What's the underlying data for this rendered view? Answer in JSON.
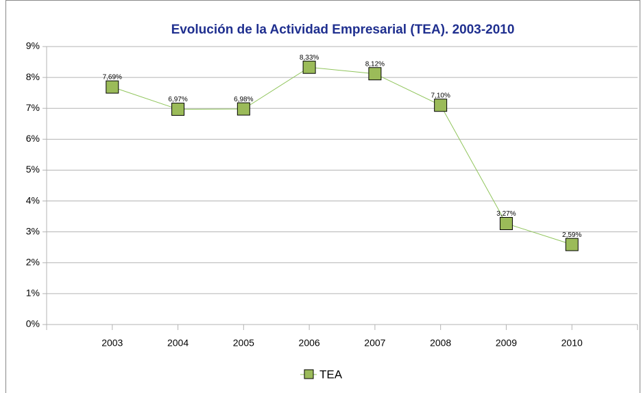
{
  "chart_data": {
    "type": "line",
    "title": "Evolución de la Actividad Empresarial (TEA). 2003-2010",
    "categories": [
      "2003",
      "2004",
      "2005",
      "2006",
      "2007",
      "2008",
      "2009",
      "2010"
    ],
    "series": [
      {
        "name": "TEA",
        "color": "#9bbb59",
        "line_color": "#8fc45a",
        "values": [
          7.69,
          6.97,
          6.98,
          8.33,
          8.12,
          7.1,
          3.27,
          2.59
        ],
        "value_labels": [
          "7,69%",
          "6,97%",
          "6,98%",
          "8,33%",
          "8,12%",
          "7,10%",
          "3,27%",
          "2,59%"
        ]
      }
    ],
    "ylim": [
      0,
      9
    ],
    "yticks": [
      {
        "value": 0,
        "label": "0%"
      },
      {
        "value": 1,
        "label": "1%"
      },
      {
        "value": 2,
        "label": "2%"
      },
      {
        "value": 3,
        "label": "3%"
      },
      {
        "value": 4,
        "label": "4%"
      },
      {
        "value": 5,
        "label": "5%"
      },
      {
        "value": 6,
        "label": "6%"
      },
      {
        "value": 7,
        "label": "7%"
      },
      {
        "value": 8,
        "label": "8%"
      },
      {
        "value": 9,
        "label": "9%"
      }
    ],
    "grid": true,
    "legend": "bottom"
  }
}
